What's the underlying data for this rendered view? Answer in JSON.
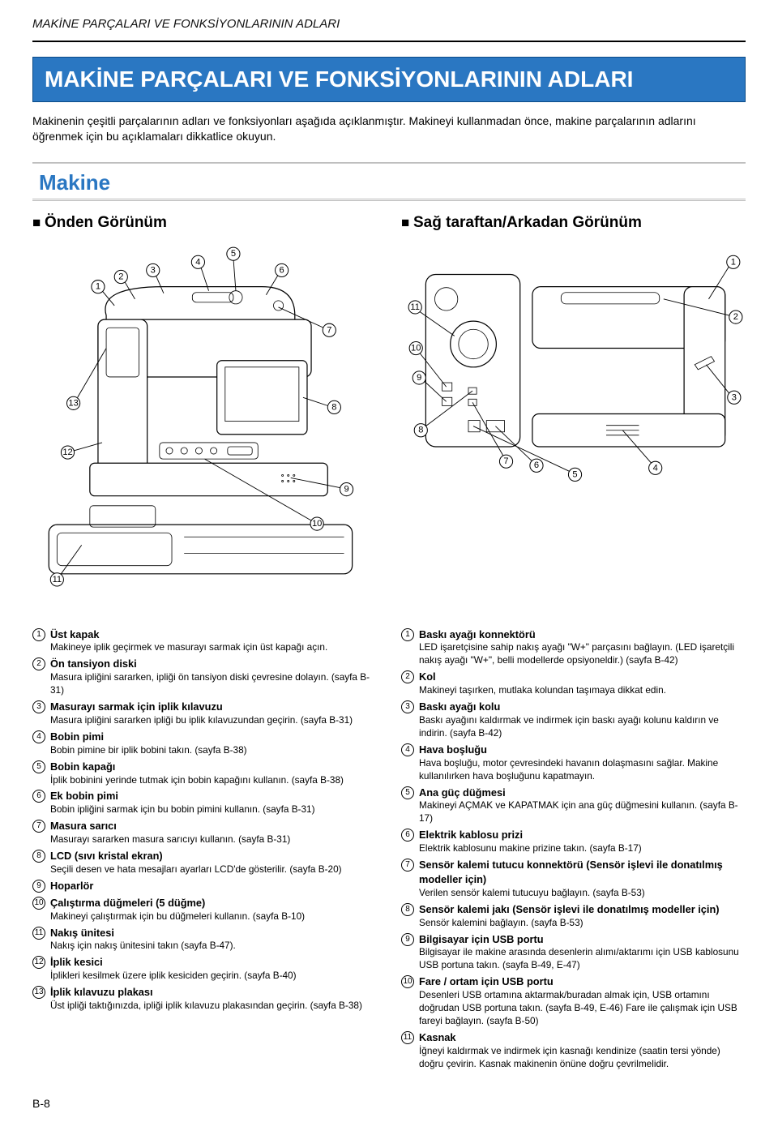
{
  "header": "MAKİNE PARÇALARI VE FONKSİYONLARININ ADLARI",
  "mainTitle": "MAKİNE PARÇALARI VE FONKSİYONLARININ ADLARI",
  "intro": "Makinenin çeşitli parçalarının adları ve fonksiyonları aşağıda açıklanmıştır. Makineyi kullanmadan önce, makine parçalarının adlarını öğrenmek için bu açıklamaları dikkatlice okuyun.",
  "sectionHeading": "Makine",
  "views": {
    "front": "Önden Görünüm",
    "rear": "Sağ taraftan/Arkadan Görünüm"
  },
  "frontParts": [
    {
      "n": "1",
      "name": "Üst kapak",
      "desc": "Makineye iplik geçirmek ve masurayı sarmak için üst kapağı açın."
    },
    {
      "n": "2",
      "name": "Ön tansiyon diski",
      "desc": "Masura ipliğini sararken, ipliği ön tansiyon diski çevresine dolayın. (sayfa B-31)"
    },
    {
      "n": "3",
      "name": "Masurayı sarmak için iplik kılavuzu",
      "desc": "Masura ipliğini sararken ipliği bu iplik kılavuzundan geçirin. (sayfa B-31)"
    },
    {
      "n": "4",
      "name": "Bobin pimi",
      "desc": "Bobin pimine bir iplik bobini takın. (sayfa B-38)"
    },
    {
      "n": "5",
      "name": "Bobin kapağı",
      "desc": "İplik bobinini yerinde tutmak için bobin kapağını kullanın. (sayfa B-38)"
    },
    {
      "n": "6",
      "name": "Ek bobin pimi",
      "desc": "Bobin ipliğini sarmak için bu bobin pimini kullanın. (sayfa B-31)"
    },
    {
      "n": "7",
      "name": "Masura sarıcı",
      "desc": "Masurayı sararken masura sarıcıyı kullanın. (sayfa B-31)"
    },
    {
      "n": "8",
      "name": "LCD (sıvı kristal ekran)",
      "desc": "Seçili desen ve hata mesajları ayarları LCD'de gösterilir. (sayfa B-20)"
    },
    {
      "n": "9",
      "name": "Hoparlör",
      "desc": ""
    },
    {
      "n": "10",
      "name": "Çalıştırma düğmeleri (5 düğme)",
      "desc": "Makineyi çalıştırmak için bu düğmeleri kullanın. (sayfa B-10)"
    },
    {
      "n": "11",
      "name": "Nakış ünitesi",
      "desc": "Nakış için nakış ünitesini takın (sayfa B-47)."
    },
    {
      "n": "12",
      "name": "İplik kesici",
      "desc": "İplikleri kesilmek üzere iplik kesiciden geçirin. (sayfa B-40)"
    },
    {
      "n": "13",
      "name": "İplik kılavuzu plakası",
      "desc": "Üst ipliği taktığınızda, ipliği iplik kılavuzu plakasından geçirin. (sayfa B-38)"
    }
  ],
  "rearParts": [
    {
      "n": "1",
      "name": "Baskı ayağı konnektörü",
      "desc": "LED işaretçisine sahip nakış ayağı \"W+\" parçasını bağlayın. (LED işaretçili nakış ayağı \"W+\", belli modellerde opsiyoneldir.) (sayfa B-42)"
    },
    {
      "n": "2",
      "name": "Kol",
      "desc": "Makineyi taşırken, mutlaka kolundan taşımaya dikkat edin."
    },
    {
      "n": "3",
      "name": "Baskı ayağı kolu",
      "desc": "Baskı ayağını kaldırmak ve indirmek için baskı ayağı kolunu kaldırın ve indirin. (sayfa B-42)"
    },
    {
      "n": "4",
      "name": "Hava boşluğu",
      "desc": "Hava boşluğu, motor çevresindeki havanın dolaşmasını sağlar. Makine kullanılırken hava boşluğunu kapatmayın."
    },
    {
      "n": "5",
      "name": "Ana güç düğmesi",
      "desc": "Makineyi AÇMAK ve KAPATMAK için ana güç düğmesini kullanın. (sayfa B-17)"
    },
    {
      "n": "6",
      "name": "Elektrik kablosu prizi",
      "desc": "Elektrik kablosunu makine prizine takın. (sayfa B-17)"
    },
    {
      "n": "7",
      "name": "Sensör kalemi tutucu konnektörü (Sensör işlevi ile donatılmış modeller için)",
      "desc": "Verilen sensör kalemi tutucuyu bağlayın. (sayfa B-53)"
    },
    {
      "n": "8",
      "name": "Sensör kalemi jakı (Sensör işlevi ile donatılmış modeller için)",
      "desc": "Sensör kalemini bağlayın. (sayfa B-53)"
    },
    {
      "n": "9",
      "name": "Bilgisayar için USB portu",
      "desc": "Bilgisayar ile makine arasında desenlerin alımı/aktarımı için USB kablosunu USB portuna takın. (sayfa B-49, E-47)"
    },
    {
      "n": "10",
      "name": "Fare / ortam için USB portu",
      "desc": "Desenleri USB ortamına aktarmak/buradan almak için, USB ortamını doğrudan USB portuna takın. (sayfa B-49, E-46) Fare ile çalışmak için USB fareyi bağlayın. (sayfa B-50)"
    },
    {
      "n": "11",
      "name": "Kasnak",
      "desc": "İğneyi kaldırmak ve indirmek için kasnağı kendinize (saatin tersi yönde) doğru çevirin. Kasnak makinenin önüne doğru çevrilmelidir."
    }
  ],
  "footer": "B-8",
  "colors": {
    "accent": "#2a77c2",
    "titleBorder": "#0b4a86",
    "rule": "#bbbbbb"
  }
}
